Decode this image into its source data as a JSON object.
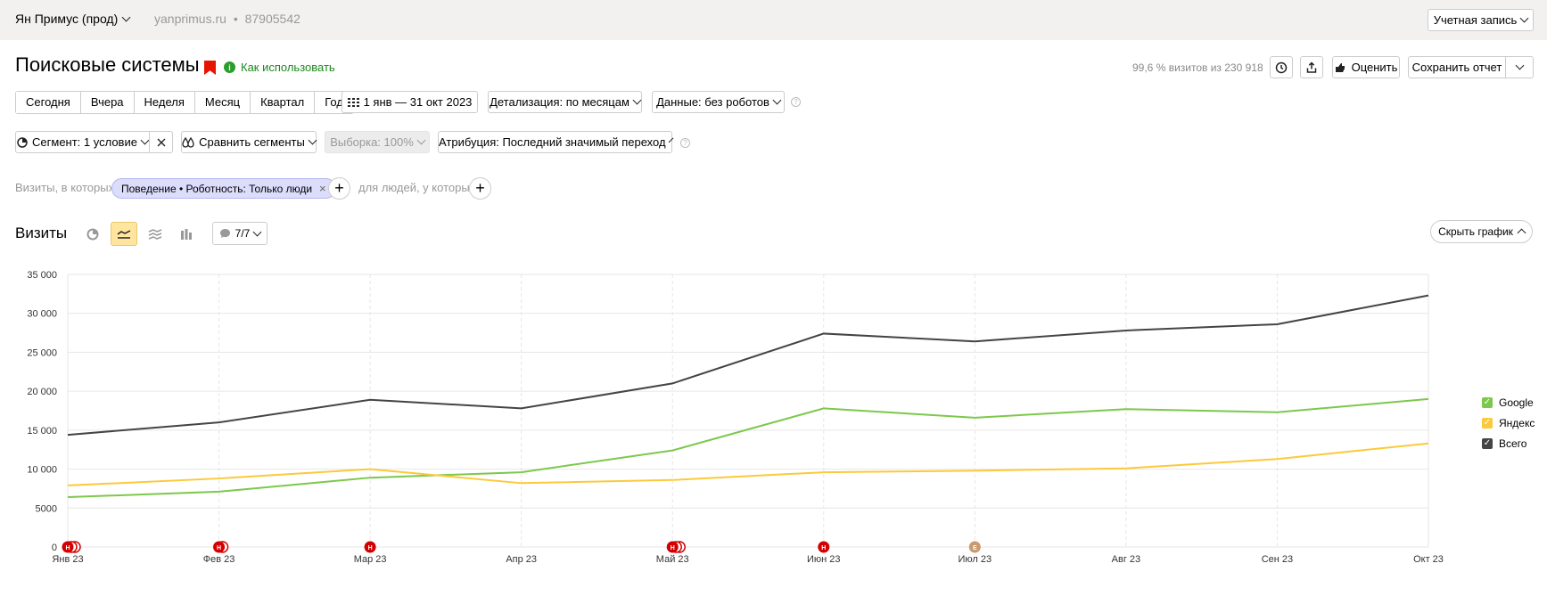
{
  "topbar": {
    "counter_name": "Ян Примус (прод)",
    "site": "yanprimus.ru",
    "separator": "•",
    "counter_id": "87905542",
    "account_label": "Учетная запись"
  },
  "header": {
    "title": "Поисковые системы",
    "how_to_use": "Как использовать",
    "visits_share": "99,6 % визитов из 230 918",
    "rate_label": "Оценить",
    "save_label": "Сохранить отчет"
  },
  "periods": [
    "Сегодня",
    "Вчера",
    "Неделя",
    "Месяц",
    "Квартал",
    "Год"
  ],
  "date_range": "1 янв — 31 окт 2023",
  "detail_label": "Детализация: по месяцам",
  "data_label": "Данные: без роботов",
  "segment_label": "Сегмент: 1 условие",
  "compare_label": "Сравнить сегменты",
  "sample_label": "Выборка: 100%",
  "attribution_label": "Атрибуция: Последний значимый переход",
  "filter": {
    "visits_where": "Визиты, в которых",
    "chip": "Поведение • Роботность: Только люди",
    "for_people": "для людей, у которых"
  },
  "chart_section": {
    "title": "Визиты",
    "annotations": "7/7",
    "hide_chart": "Скрыть график"
  },
  "colors": {
    "google": "#7cc84b",
    "yandex": "#fcc93b",
    "total": "#444444",
    "annotation_holiday": "#d20000",
    "annotation_event": "#c99a6e"
  },
  "chart_data": {
    "type": "line",
    "categories": [
      "Янв 23",
      "Фев 23",
      "Мар 23",
      "Апр 23",
      "Май 23",
      "Июн 23",
      "Июл 23",
      "Авг 23",
      "Сен 23",
      "Окт 23"
    ],
    "yticks": [
      "0",
      "5000",
      "10 000",
      "15 000",
      "20 000",
      "25 000",
      "30 000",
      "35 000"
    ],
    "ylim": [
      0,
      35000
    ],
    "grid": true,
    "legend_position": "right",
    "series": [
      {
        "name": "Google",
        "color": "#7cc84b",
        "values": [
          6400,
          7100,
          8900,
          9600,
          12400,
          17800,
          16600,
          17700,
          17300,
          19000
        ]
      },
      {
        "name": "Яндекс",
        "color": "#fcc93b",
        "values": [
          7900,
          8800,
          10000,
          8200,
          8600,
          9600,
          9800,
          10100,
          11300,
          13300
        ]
      },
      {
        "name": "Всего",
        "color": "#444444",
        "values": [
          14400,
          16000,
          18900,
          17800,
          21000,
          27400,
          26400,
          27800,
          28600,
          32300
        ]
      }
    ],
    "annotations": [
      {
        "category_index": 0,
        "label": "Н",
        "count": 3,
        "kind": "holiday"
      },
      {
        "category_index": 1,
        "label": "Н",
        "count": 2,
        "kind": "holiday"
      },
      {
        "category_index": 2,
        "label": "Н",
        "count": 1,
        "kind": "holiday"
      },
      {
        "category_index": 4,
        "label": "Н",
        "count": 3,
        "kind": "holiday"
      },
      {
        "category_index": 5,
        "label": "Н",
        "count": 1,
        "kind": "holiday"
      },
      {
        "category_index": 6,
        "label": "Е",
        "count": 1,
        "kind": "event"
      }
    ]
  }
}
